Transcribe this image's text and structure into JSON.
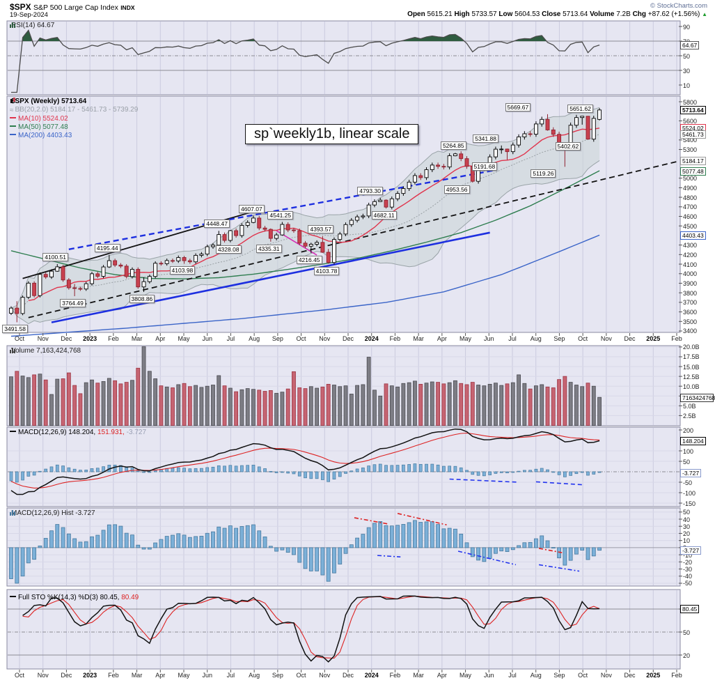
{
  "header": {
    "symbol": "$SPX",
    "name": "S&P 500 Large Cap Index",
    "exchange": "INDX",
    "date": "19-Sep-2024",
    "credit": "© StockCharts.com",
    "quote": [
      {
        "label": "Open",
        "value": "5615.21"
      },
      {
        "label": "High",
        "value": "5733.57"
      },
      {
        "label": "Low",
        "value": "5604.53"
      },
      {
        "label": "Close",
        "value": "5713.64"
      },
      {
        "label": "Volume",
        "value": "7.2B"
      },
      {
        "label": "Chg",
        "value": "+87.62 (+1.56%)"
      }
    ],
    "chg_arrow": "▲"
  },
  "colors": {
    "candle_down": "#c8414f",
    "candle_down_stroke": "#8f2230",
    "candle_up_fill": "#ffffff",
    "candle_up_stroke": "#000000",
    "ma10": "#e0344c",
    "ma50": "#2e7d4f",
    "ma200": "#3a64c8",
    "bb_fill": "#c9d4d6",
    "bb_line": "#9aa4a8",
    "volume_up": "#7d7d85",
    "volume_up_stroke": "#4a4a50",
    "volume_down": "#c66472",
    "volume_down_stroke": "#9c3442",
    "hist_bar": "#7cb0d8",
    "hist_bar_stroke": "#46799f",
    "macd_line": "#111111",
    "macd_signal": "#dd2222",
    "sto_k": "#111111",
    "sto_d": "#dd2222",
    "rsi_line": "#4a4a4a",
    "rsi_over_fill": "#2f5c40",
    "panel_bg": "#e6e6f2",
    "grid_v": "#cbcbdf",
    "grid_h_light": "#d8d8e8",
    "grid_h_mid": "#8c8c94",
    "panel_border": "#8888a0",
    "trend_black": "#111111",
    "trend_blue": "#1d2fe0",
    "trend_magenta": "#d62fb4",
    "ann_red": "#dd2222",
    "ann_blue": "#2233ee",
    "up_arrow_green": "#1f9d2f",
    "credit": "#5f6f95",
    "tick": "#555555"
  },
  "panels": {
    "rsi": {
      "legend": "RSI(14) 64.67",
      "ticks": [
        90,
        70,
        50,
        30,
        10
      ],
      "value_box": {
        "text": "64.67",
        "value": 64.67,
        "border": "#555555"
      }
    },
    "main": {
      "legend_title": "$SPX (Weekly) 5713.64",
      "legend_bb": "BB(20,2.0) 5184.17 - 5461.73 - 5739.29",
      "legend_ma10": "MA(10) 5524.02",
      "legend_ma50": "MA(50) 5077.48",
      "legend_ma200": "MA(200) 4403.43",
      "textbox": "sp`weekly1b, linear scale",
      "ticks": [
        5800,
        5600,
        5400,
        5300,
        5000,
        4900,
        4800,
        4700,
        4600,
        4500,
        4300,
        4200,
        4100,
        4000,
        3900,
        3800,
        3700,
        3600,
        3500,
        3400
      ],
      "value_boxes": [
        {
          "text": "5713.64",
          "value": 5713.64,
          "border": "#000000",
          "bold": true
        },
        {
          "text": "5524.02",
          "value": 5524.02,
          "border": "#e0344c"
        },
        {
          "text": "5461.73",
          "value": 5461.73,
          "border": "#999999"
        },
        {
          "text": "5184.17",
          "value": 5184.17,
          "border": "#999999"
        },
        {
          "text": "5077.48",
          "value": 5077.48,
          "border": "#2e7d4f"
        },
        {
          "text": "4403.43",
          "value": 4403.43,
          "border": "#3a64c8"
        }
      ]
    },
    "volume": {
      "legend": "Volume 7,163,424,768",
      "ticks": [
        {
          "t": "20.0B",
          "v": 20
        },
        {
          "t": "17.5B",
          "v": 17.5
        },
        {
          "t": "15.0B",
          "v": 15
        },
        {
          "t": "12.5B",
          "v": 12.5
        },
        {
          "t": "10.0B",
          "v": 10
        },
        {
          "t": "7.5B",
          "v": 7.5
        },
        {
          "t": "5.0B",
          "v": 5
        },
        {
          "t": "2.5B",
          "v": 2.5
        }
      ],
      "value_box": {
        "text": "7163424768",
        "value": 7.163,
        "border": "#333333"
      }
    },
    "macd": {
      "legend_parts": [
        {
          "text": "MACD(12,26,9) 148.204,",
          "color": "#000000"
        },
        {
          "text": "151.931,",
          "color": "#dd2222"
        },
        {
          "text": "-3.727",
          "color": "#9aa0b4"
        }
      ],
      "ticks": [
        200,
        100,
        50,
        -50,
        -100,
        -150
      ],
      "value_boxes": [
        {
          "text": "148.204",
          "value": 148.204,
          "border": "#000000"
        },
        {
          "text": "-3.727",
          "value": -3.727,
          "border": "#8899cc"
        }
      ]
    },
    "hist": {
      "legend": "MACD(12,26,9) Hist -3.727",
      "ticks": [
        50,
        40,
        30,
        20,
        10,
        0,
        -10,
        -20,
        -30,
        -40,
        -50
      ],
      "value_box": {
        "text": "-3.727",
        "value": -3.727,
        "border": "#8899cc"
      }
    },
    "sto": {
      "legend_parts": [
        {
          "text": "Full STO %K(14,3) %D(3) 80.45,",
          "color": "#000000"
        },
        {
          "text": "80.49",
          "color": "#dd2222"
        }
      ],
      "ticks": [
        80,
        50,
        20
      ],
      "value_box": {
        "text": "80.45",
        "value": 80.45,
        "border": "#000000"
      }
    }
  },
  "axis_months": {
    "labels": [
      "Oct",
      "Nov",
      "Dec",
      "2023",
      "Feb",
      "Mar",
      "Apr",
      "May",
      "Jun",
      "Jul",
      "Aug",
      "Sep",
      "Oct",
      "Nov",
      "Dec",
      "2024",
      "Feb",
      "Mar",
      "Apr",
      "May",
      "Jun",
      "Jul",
      "Aug",
      "Sep",
      "Oct",
      "Nov",
      "Dec",
      "2025",
      "Feb"
    ],
    "bold_indices": [
      3,
      15,
      27
    ]
  },
  "chart_data": {
    "type": "candlestick",
    "title": "$SPX (Weekly)",
    "timeframe": "weekly, Oct 2022 - 19 Sep 2024",
    "ylim": [
      3400,
      5800
    ],
    "first_open": 3585.62,
    "closes": [
      3639.66,
      3583.07,
      3752.75,
      3901.06,
      3770.55,
      3992.93,
      3965.34,
      4026.12,
      4071.7,
      3934.38,
      3852.36,
      3844.82,
      3839.5,
      3895.08,
      3999.09,
      3972.61,
      4070.56,
      4136.48,
      4090.46,
      4079.09,
      3970.04,
      4045.64,
      3861.59,
      3916.64,
      3970.99,
      4109.31,
      4105.02,
      4137.64,
      4133.52,
      4169.48,
      4136.25,
      4124.08,
      4191.98,
      4205.45,
      4282.37,
      4298.86,
      4409.59,
      4348.33,
      4450.38,
      4398.95,
      4505.42,
      4536.34,
      4582.23,
      4478.03,
      4464.05,
      4369.71,
      4405.71,
      4515.77,
      4457.49,
      4450.32,
      4320.06,
      4288.05,
      4308.5,
      4327.78,
      4224.16,
      4117.37,
      4358.34,
      4415.24,
      4514.02,
      4559.34,
      4594.63,
      4604.37,
      4719.19,
      4754.63,
      4769.83,
      4697.24,
      4783.83,
      4839.81,
      4890.97,
      4958.61,
      5026.61,
      5005.57,
      5088.8,
      5137.08,
      5123.69,
      5117.09,
      5234.18,
      5254.35,
      5204.34,
      5123.41,
      4967.23,
      5099.96,
      5127.79,
      5222.68,
      5303.27,
      5304.72,
      5277.51,
      5346.99,
      5431.6,
      5464.62,
      5460.48,
      5567.19,
      5615.35,
      5505.0,
      5459.1,
      5346.56,
      5344.16,
      5554.25,
      5634.61,
      5648.4,
      5408.42,
      5626.02,
      5713.64
    ],
    "open_overrides": {
      "102": 5615.21
    },
    "hl_overrides": {
      "1": [
        3712,
        3491.58
      ],
      "8": [
        4100.51,
        4020
      ],
      "11": [
        3893,
        3764.49
      ],
      "17": [
        4195.44,
        4060
      ],
      "23": [
        3964,
        3808.86
      ],
      "30": [
        4186,
        4103.98
      ],
      "36": [
        4448.47,
        4293
      ],
      "38": [
        4458,
        4328.08
      ],
      "42": [
        4607.07,
        4528
      ],
      "45": [
        4474,
        4335.31
      ],
      "47": [
        4541.25,
        4397
      ],
      "52": [
        4324,
        4216.45
      ],
      "54": [
        4393.57,
        4219
      ],
      "55": [
        4259,
        4103.78
      ],
      "64": [
        4793.3,
        4751
      ],
      "65": [
        4778,
        4682.11
      ],
      "77": [
        5264.85,
        5229
      ],
      "80": [
        5128,
        4953.56
      ],
      "85": [
        5341.88,
        5256
      ],
      "86": [
        5309,
        5191.68
      ],
      "93": [
        5669.67,
        5497
      ],
      "96": [
        5355,
        5119.26
      ],
      "99": [
        5651.62,
        5560
      ],
      "100": [
        5649,
        5402.62
      ],
      "102": [
        5733.57,
        5604.53
      ]
    },
    "volumes_billions": [
      12.4,
      13.8,
      12.6,
      12.2,
      12.9,
      13.1,
      11.6,
      7.9,
      11.8,
      11.9,
      13.4,
      10.2,
      8.1,
      10.9,
      11.6,
      10.8,
      11.2,
      12.0,
      11.4,
      10.6,
      11.0,
      11.5,
      14.6,
      20.6,
      13.8,
      11.9,
      10.1,
      9.8,
      9.6,
      10.4,
      10.7,
      9.9,
      10.2,
      9.7,
      10.0,
      10.3,
      12.7,
      10.1,
      9.5,
      8.6,
      9.1,
      9.4,
      9.2,
      9.0,
      8.7,
      8.9,
      8.2,
      8.5,
      9.3,
      13.7,
      9.6,
      9.4,
      9.9,
      9.5,
      9.8,
      10.5,
      10.3,
      9.9,
      10.1,
      8.0,
      10.2,
      10.4,
      17.4,
      9.0,
      7.5,
      10.6,
      10.1,
      9.8,
      10.7,
      10.9,
      11.3,
      10.5,
      10.8,
      11.1,
      11.0,
      10.6,
      10.9,
      11.4,
      10.7,
      10.4,
      11.0,
      10.3,
      10.1,
      10.5,
      10.8,
      10.2,
      10.6,
      10.9,
      12.9,
      10.7,
      9.3,
      10.1,
      10.4,
      9.8,
      9.6,
      11.7,
      12.5,
      11.0,
      10.3,
      9.9,
      10.8,
      10.0,
      7.16
    ],
    "ma50_anchors": [
      [
        0,
        4240
      ],
      [
        6,
        4150
      ],
      [
        12,
        4060
      ],
      [
        18,
        3990
      ],
      [
        24,
        3950
      ],
      [
        30,
        3946
      ],
      [
        36,
        3958
      ],
      [
        42,
        3995
      ],
      [
        48,
        4045
      ],
      [
        54,
        4100
      ],
      [
        60,
        4160
      ],
      [
        66,
        4240
      ],
      [
        72,
        4330
      ],
      [
        78,
        4430
      ],
      [
        84,
        4560
      ],
      [
        90,
        4710
      ],
      [
        96,
        4890
      ],
      [
        102,
        5077.48
      ]
    ],
    "ma200_anchors": [
      [
        0,
        3345
      ],
      [
        20,
        3430
      ],
      [
        40,
        3530
      ],
      [
        55,
        3625
      ],
      [
        65,
        3700
      ],
      [
        75,
        3810
      ],
      [
        85,
        3990
      ],
      [
        95,
        4230
      ],
      [
        102,
        4403.43
      ]
    ],
    "price_annotations": [
      {
        "w": 1,
        "v": 3491.58,
        "side": "below",
        "label": "3491.58"
      },
      {
        "w": 8,
        "v": 4100.51,
        "side": "above",
        "label": "4100.51"
      },
      {
        "w": 11,
        "v": 3764.49,
        "side": "below",
        "label": "3764.49"
      },
      {
        "w": 17,
        "v": 4195.44,
        "side": "above",
        "label": "4195.44"
      },
      {
        "w": 23,
        "v": 3808.86,
        "side": "below",
        "label": "3808.86"
      },
      {
        "w": 30,
        "v": 4103.98,
        "side": "below",
        "label": "4103.98"
      },
      {
        "w": 36,
        "v": 4448.47,
        "side": "above",
        "label": "4448.47"
      },
      {
        "w": 38,
        "v": 4328.08,
        "side": "below",
        "label": "4328.08"
      },
      {
        "w": 42,
        "v": 4607.07,
        "side": "above",
        "label": "4607.07"
      },
      {
        "w": 45,
        "v": 4335.31,
        "side": "below",
        "label": "4335.31"
      },
      {
        "w": 47,
        "v": 4541.25,
        "side": "above",
        "label": "4541.25"
      },
      {
        "w": 52,
        "v": 4216.45,
        "side": "below",
        "label": "4216.45"
      },
      {
        "w": 54,
        "v": 4393.57,
        "side": "above",
        "label": "4393.57"
      },
      {
        "w": 55,
        "v": 4103.78,
        "side": "below",
        "label": "4103.78"
      },
      {
        "w": 64,
        "v": 4793.3,
        "side": "above",
        "label": "4793.30",
        "dx": -12
      },
      {
        "w": 65,
        "v": 4682.11,
        "side": "below",
        "label": "4682.11"
      },
      {
        "w": 77,
        "v": 5264.85,
        "side": "above",
        "label": "5264.85"
      },
      {
        "w": 80,
        "v": 4953.56,
        "side": "below",
        "label": "4953.56",
        "dx": -20
      },
      {
        "w": 85,
        "v": 5341.88,
        "side": "above",
        "label": "5341.88",
        "dx": -20
      },
      {
        "w": 86,
        "v": 5191.68,
        "side": "below",
        "label": "5191.68",
        "dx": -30
      },
      {
        "w": 93,
        "v": 5669.67,
        "side": "above",
        "label": "5669.67",
        "dx": -40
      },
      {
        "w": 96,
        "v": 5119.26,
        "side": "below",
        "label": "5119.26",
        "dx": -28
      },
      {
        "w": 99,
        "v": 5651.62,
        "side": "above",
        "label": "5651.62"
      },
      {
        "w": 100,
        "v": 5402.62,
        "side": "below",
        "label": "5402.62",
        "dx": -26
      }
    ],
    "trendlines": [
      {
        "name": "black-solid-trendline",
        "style": "solid",
        "color_key": "trend_black",
        "w1": 2,
        "p1": 3950,
        "w2": 42,
        "p2": 4650,
        "width": 1.8
      },
      {
        "name": "black-dashed-trendline",
        "style": "dashed",
        "color_key": "trend_black",
        "w1": 3,
        "p1": 3540,
        "w2": 116,
        "p2": 5180,
        "width": 1.8
      },
      {
        "name": "blue-solid-trendline",
        "style": "solid",
        "color_key": "trend_blue",
        "w1": 7,
        "p1": 3490,
        "w2": 83,
        "p2": 4430,
        "width": 2.6
      },
      {
        "name": "blue-dashed-trendline",
        "style": "dashed",
        "color_key": "trend_blue",
        "w1": 10,
        "p1": 4255,
        "w2": 84,
        "p2": 5085,
        "width": 2.4
      },
      {
        "name": "magenta-trendline",
        "style": "solid",
        "color_key": "trend_magenta",
        "w1": 46,
        "p1": 4450,
        "w2": 53,
        "p2": 4195,
        "width": 1.6
      }
    ],
    "hist_annotations": [
      {
        "color_key": "ann_red",
        "w1": 59.5,
        "v1": 42,
        "w2": 65.5,
        "v2": 33
      },
      {
        "color_key": "ann_red",
        "w1": 67,
        "v1": 48,
        "w2": 75.5,
        "v2": 32
      },
      {
        "color_key": "ann_red",
        "w1": 91.5,
        "v1": -1,
        "w2": 95.5,
        "v2": -7
      },
      {
        "color_key": "ann_blue",
        "w1": 63.5,
        "v1": -11,
        "w2": 67.5,
        "v2": -13
      },
      {
        "color_key": "ann_blue",
        "w1": 77.5,
        "v1": -5,
        "w2": 87.5,
        "v2": -24
      },
      {
        "color_key": "ann_blue",
        "w1": 91.5,
        "v1": -24,
        "w2": 98.5,
        "v2": -33
      }
    ],
    "macd_annotations": [
      {
        "color_key": "ann_blue",
        "w1": 76,
        "v1": -35,
        "w2": 88,
        "v2": -50
      },
      {
        "color_key": "ann_blue",
        "w1": 91,
        "v1": -48,
        "w2": 99,
        "v2": -62
      }
    ],
    "indicators": {
      "rsi": "RSI(14)",
      "bb": "BB(20,2.0)",
      "ma": [
        10,
        50,
        200
      ],
      "macd": "MACD(12,26,9)",
      "sto": "Full STO %K(14,3) %D(3)"
    },
    "last_values": {
      "close": 5713.64,
      "rsi": 64.67,
      "ma10": 5524.02,
      "ma50": 5077.48,
      "ma200": 4403.43,
      "bb_upper": 5739.29,
      "bb_mid": 5461.73,
      "bb_lower": 5184.17,
      "macd": 148.204,
      "macd_signal": 151.931,
      "macd_hist": -3.727,
      "sto_k": 80.45,
      "sto_d": 80.49,
      "volume": "7,163,424,768"
    }
  }
}
